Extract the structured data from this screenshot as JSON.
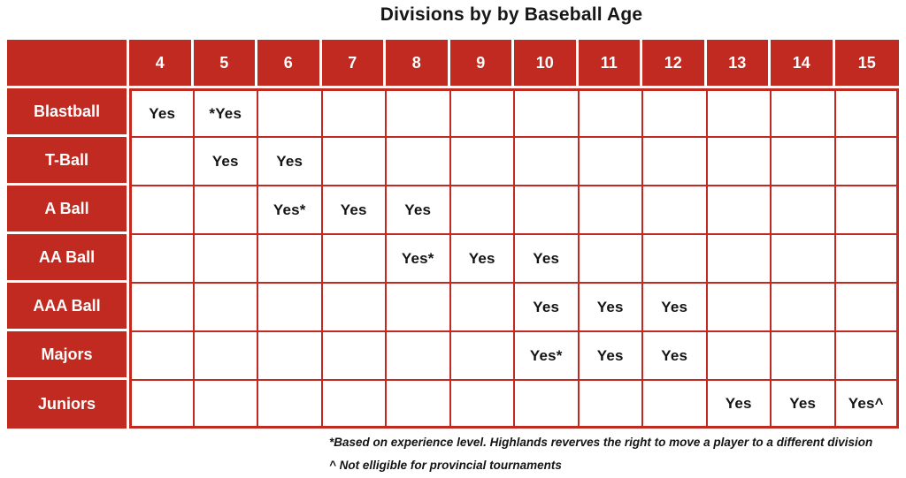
{
  "colors": {
    "accent_red": "#C02A20",
    "header_text": "#FFFFFF",
    "cell_text": "#141414",
    "background": "#FFFFFF"
  },
  "chart_data": {
    "type": "table",
    "title": "Divisions by by Baseball Age",
    "age_columns": [
      "4",
      "5",
      "6",
      "7",
      "8",
      "9",
      "10",
      "11",
      "12",
      "13",
      "14",
      "15"
    ],
    "rows": [
      {
        "label": "Blastball",
        "cells": [
          "Yes",
          "*Yes",
          "",
          "",
          "",
          "",
          "",
          "",
          "",
          "",
          "",
          ""
        ]
      },
      {
        "label": "T-Ball",
        "cells": [
          "",
          "Yes",
          "Yes",
          "",
          "",
          "",
          "",
          "",
          "",
          "",
          "",
          ""
        ]
      },
      {
        "label": "A Ball",
        "cells": [
          "",
          "",
          "Yes*",
          "Yes",
          "Yes",
          "",
          "",
          "",
          "",
          "",
          "",
          ""
        ]
      },
      {
        "label": "AA Ball",
        "cells": [
          "",
          "",
          "",
          "",
          "Yes*",
          "Yes",
          "Yes",
          "",
          "",
          "",
          "",
          ""
        ]
      },
      {
        "label": "AAA Ball",
        "cells": [
          "",
          "",
          "",
          "",
          "",
          "",
          "Yes",
          "Yes",
          "Yes",
          "",
          "",
          ""
        ]
      },
      {
        "label": "Majors",
        "cells": [
          "",
          "",
          "",
          "",
          "",
          "",
          "Yes*",
          "Yes",
          "Yes",
          "",
          "",
          ""
        ]
      },
      {
        "label": "Juniors",
        "cells": [
          "",
          "",
          "",
          "",
          "",
          "",
          "",
          "",
          "",
          "Yes",
          "Yes",
          "Yes^"
        ]
      }
    ],
    "footnotes": [
      "*Based on experience level. Highlands reverves the right to move a player to a different division",
      "^ Not elligible for provincial tournaments"
    ],
    "layout_hints": {
      "header_fill": "red",
      "label_column_fill": "red",
      "grid_lines": "red",
      "cell_fill": "white"
    }
  }
}
